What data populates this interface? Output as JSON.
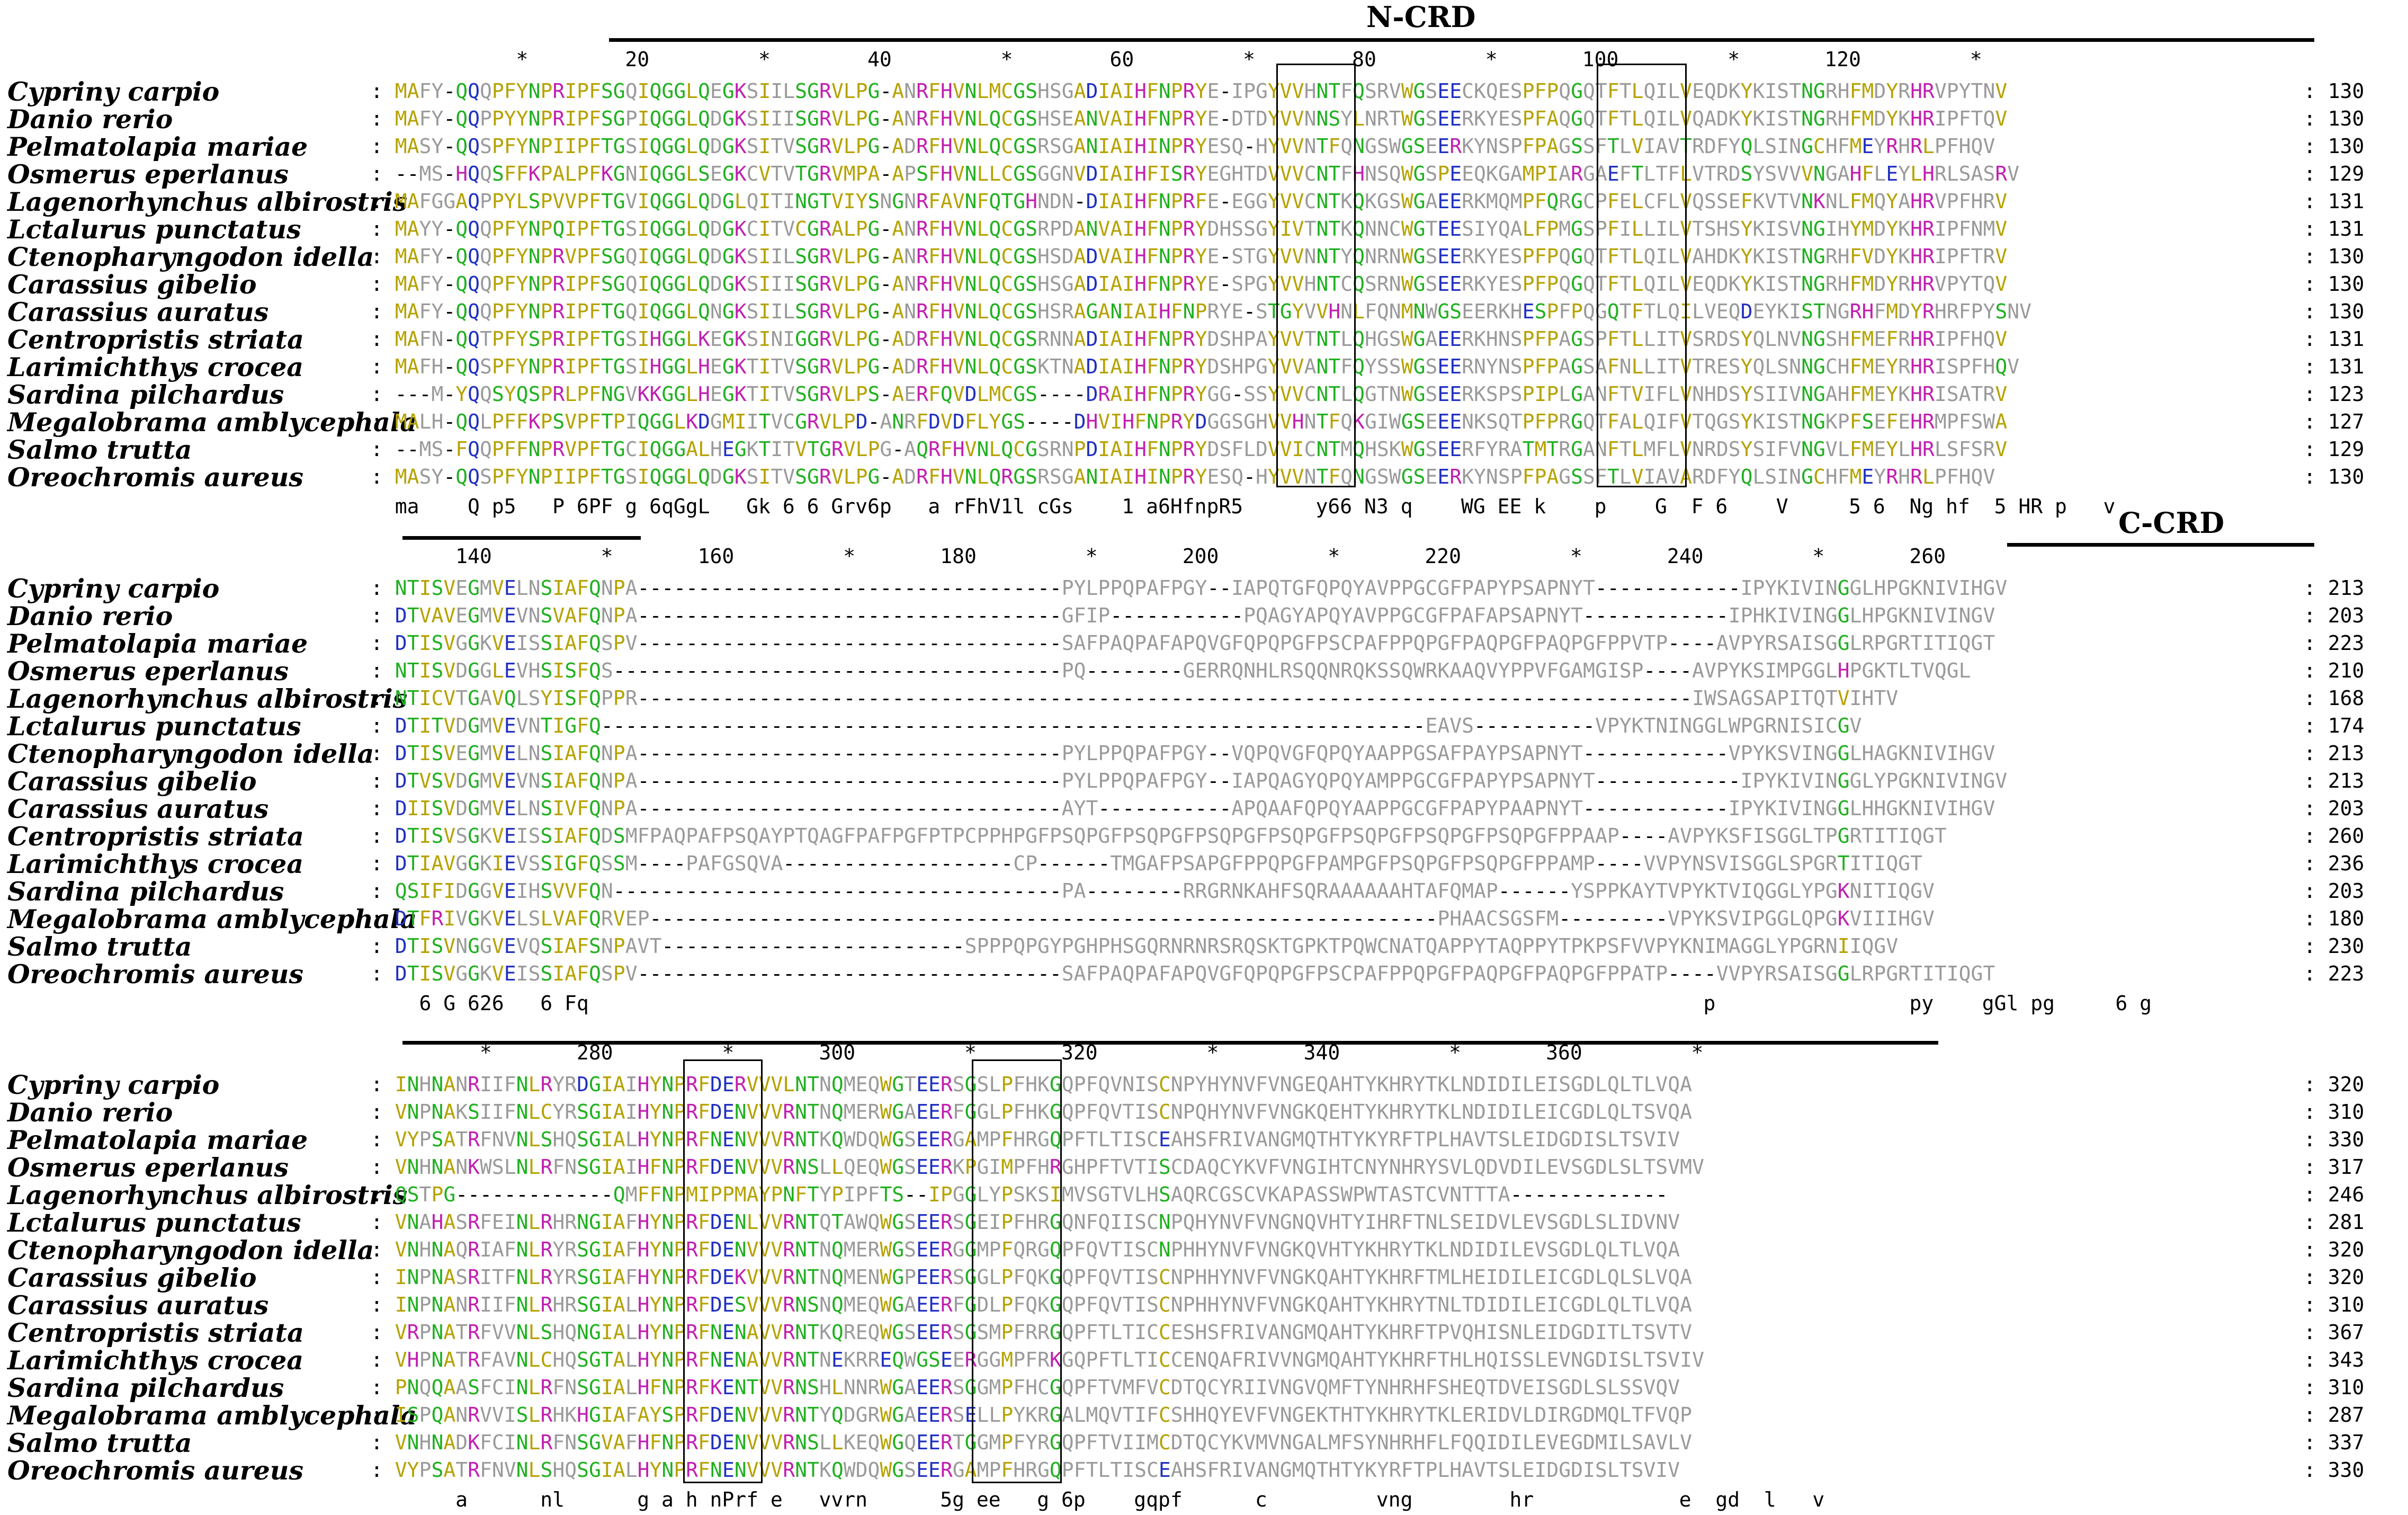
{
  "colors": {
    "yellow": "#b5a200",
    "gray": "#9a9a9a",
    "red": "#c8102e",
    "magenta": "#c020b0",
    "green": "#20b020",
    "blue": "#2030c0",
    "black": "#000000"
  },
  "regions": [
    {
      "label": "N-CRD",
      "block": 0
    },
    {
      "label": "C-CRD",
      "block": 1
    }
  ],
  "blocks": [
    {
      "ruler": "          *        20         *        40         *        60         *        80         *       100         *       120         *",
      "rows": [
        {
          "species": "Cypriny carpio",
          "seq": "MAFY-QQQPFYNPRIPFSGQIQGGLQEGKSIILSGRVLPG-ANRFHVNLMCGSHSGADIAIHFNPRYE-IPGYVVHNTFQSRVWGSEECKQESPFPQGQTFTLQILVEQDKYKISTNGRHFMDYRHRVPYTNV",
          "num": "130"
        },
        {
          "species": "Danio rerio",
          "seq": "MAFY-QQPPYYNPRIPFSGPIQGGLQDGKSIIISGRVLPG-ANRFHVNLQCGSHSEANVAIHFNPRYE-DTDYVVNNSYLNRTWGSEERKYESPFAQGQTFTLQILVQADKYKISTNGRHFMDYKHRIPFTQV",
          "num": "130"
        },
        {
          "species": "Pelmatolapia mariae",
          "seq": "MASY-QQSPFYNPIIPFTGSIQGGLQDGKSITVSGRVLPG-ADRFHVNLQCGSRSGANIAIHINPRYESQ-HYVVNTFQNGSWGSEERKYNSPFPAGSSFTLVIAVTRDFYQLSINGCHFMEYRHRLPFHQV",
          "num": "130"
        },
        {
          "species": "Osmerus eperlanus",
          "seq": "--MS-HQQSFFKPALPFKGNIQGGLSEGKCVTVTGRVMPA-APSFHVNLLCGSGGNVDIAIHFISRYEGHTDVVVCNTFHNSQWGSPEEQKGAMPIARGAEFTLTFLVTRDSYSVVVNGAHFLEYLHRLSASRV",
          "num": "129"
        },
        {
          "species": "Lagenorhynchus albirostris",
          "seq": "MAFGGAQPPYLSPVVPFTGVIQGGLQDGLQITINGTVIYSNGNRFAVNFQTGHNDN-DIAIHFNPRFE-EGGYVVCNTKQKGSWGAEERKMQMPFQRGCPFELCFLVQSSEFKVTVNKNLFMQYAHRVPFHRV",
          "num": "131"
        },
        {
          "species": "Lctalurus punctatus",
          "seq": "MAYY-QQQPFYNPQIPFTGSIQGGLQDGKCITVCGRALPG-ANRFHVNLQCGSRPDANVAIHFNPRYDHSSGYIVTNTKQNNCWGTEESIYQALFPMGSPFILLILVTSHSYKISVNGIHYMDYKHRIPFNMV",
          "num": "131"
        },
        {
          "species": "Ctenopharyngodon idella",
          "seq": "MAFY-QQQPFYNPRVPFSGQIQGGLQDGKSIILSGRVLPG-ANRFHVNLQCGSHSDADVAIHFNPRYE-STGYVVNNTYQNRNWGSEERKYESPFPQGQTFTLQILVAHDKYKISTNGRHFVDYKHRIPFTRV",
          "num": "130"
        },
        {
          "species": "Carassius gibelio",
          "seq": "MAFY-QQQPFYNPRIPFSGQIQGGLQDGKSIIISGRVLPG-ANRFHVNLQCGSHSGADIAIHFNPRYE-SPGYVVHNTCQSRNWGSEERKYESPFPQGQTFTLQILVEQDKYKISTNGRHFMDYRHRVPYTQV",
          "num": "130"
        },
        {
          "species": "Carassius auratus",
          "seq": "MAFY-QQQPFYNPRIPFTGQIQGGLQNGKSIILSGRVLPG-ANRFHVNLQCGSHSRAGANIAIHFNPRYE-STGYVVHNLFQNMNWGSEERKHESPFPQGQTFTLQILVEQDEYKISTNGRHFMDYRHRFPYSNV",
          "num": "130"
        },
        {
          "species": "Centropristis striata",
          "seq": "MAFN-QQTPFYSPRIPFTGSIHGGLKEGKSINIGGRVLPG-ADRFHVNLQCGSRNNADIAIHFNPRYDSHPAYVVTNTLQHGSWGAEERKHNSPFPAGSPFTLLITVSRDSYQLNVNGSHFMEFRHRIPFHQV",
          "num": "131"
        },
        {
          "species": "Larimichthys crocea",
          "seq": "MAFH-QQSPFYNPRIPFTGSIHGGLHEGKTITVSGRVLPG-ADRFHVNLQCGSKTNADIAIHFNPRYDSHPGYVVANTFQYSSWGSEERNYNSPFPAGSAFNLLITVTRESYQLSNNGCHFMEYRHRISPFHQV",
          "num": "131"
        },
        {
          "species": "Sardina pilchardus",
          "seq": "---M-YQQSYQSPRLPFNGVKKGGLHEGKTITVSGRVLPS-AERFQVDLMCGS----DRAIHFNPRYGG-SSYVVCNTLQGTNWGSEERKSPSPIPLGANFTVIFLVNHDSYSIIVNGAHFMEYKHRISATRV",
          "num": "123"
        },
        {
          "species": "Megalobrama amblycephala",
          "seq": "MALH-QQLPFFKPSVPFTPIQGGLKDGMIITVCGRVLPD-ANRFDVDFLYGS----DHVIHFNPRYDGGSGHVVHNTFQKGIWGSEEENKSQTPFPRGQTFALQIFVTQGSYKISTNGKPFSEFEHRMPFSWA",
          "num": "127"
        },
        {
          "species": "Salmo trutta",
          "seq": "--MS-FQQPFFNPRVPFTGCIQGGALHEGKTITVTGRVLPG-AQRFHVNLQCGSRNPDIAIHFNPRYDSFLDVVICNTMQHSKWGSEERFYRATMTRGANFTLMFLVNRDSYSIFVNGVLFMEYLHRLSFSRV",
          "num": "129"
        },
        {
          "species": "Oreochromis aureus",
          "seq": "MASY-QQSPFYNPIIPFTGSIQGGLQDGKSITVSGRVLPG-ADRFHVNLQRGSRSGANIAIHINPRYESQ-HYVVNTFQNGSWGSEERKYNSPFPAGSSFTLVIAVARDFYQLSINGCHFMEYRHRLPFHQV",
          "num": "130"
        }
      ],
      "consensus": "ma    Q p5   P 6PF g 6qGgL   Gk 6 6 Grv6p   a rFhV1l cGs    1 a6HfnpR5      y66 N3 q    WG EE k    p    G  F 6    V     5 6  Ng hf  5 HR p   v"
    },
    {
      "ruler": "     140         *       160         *       180         *       200         *       220         *       240         *       260",
      "rows": [
        {
          "species": "Cypriny carpio",
          "seq": "NTISVEGMVELNSIAFQNPA-----------------------------------PYLPPQPAFPGY--IAPQTGFQPQYAVPPGCGFPAPYPSAPNYT------------IPYKIVINGGLHPGKNIVIHGV",
          "num": "213"
        },
        {
          "species": "Danio rerio",
          "seq": "DTVAVEGMVEVNSVAFQNPA-----------------------------------GFIP-----------PQAGYAPQYAVPPGCGFPAFAPSAPNYT------------IPHKIVINGGLHPGKNIVINGV",
          "num": "203"
        },
        {
          "species": "Pelmatolapia mariae",
          "seq": "DTISVGGKVEISSIAFQSPV-----------------------------------SAFPAQPAFAPQVGFQPQPGFPSCPAFPPQPGFPAQPGFPAQPGFPPVTP----AVPYRSAISGGLRPGRTITIQGT",
          "num": "223"
        },
        {
          "species": "Osmerus eperlanus",
          "seq": "NTISVDGGLEVHSISFQS-------------------------------------PQ--------GERRQNHLRSQQNRQKSSQWRKAAQVYPPVFGAMGISP----AVPYKSIMPGGLHPGKTLTVQGL",
          "num": "210"
        },
        {
          "species": "Lagenorhynchus albirostris",
          "seq": "NTICVTGAVQLSYISFQPPR---------------------------------------------------------------------------------------IWSAGSAPITQTVIHTV",
          "num": "168"
        },
        {
          "species": "Lctalurus punctatus",
          "seq": "DTITVDGMVEVNTIGFQ--------------------------------------------------------------------EAVS----------VPYKTNINGGLWPGRNISICGV",
          "num": "174"
        },
        {
          "species": "Ctenopharyngodon idella",
          "seq": "DTISVEGMVELNSIAFQNPA-----------------------------------PYLPPQPAFPGY--VQPQVGFQPQYAAPPGSAFPAYPSAPNYT------------VPYKSVINGGLHAGKNIVIHGV",
          "num": "213"
        },
        {
          "species": "Carassius gibelio",
          "seq": "DTVSVDGMVEVNSIAFQNPA-----------------------------------PYLPPQPAFPGY--IAPQAGYQPQYAMPPGCGFPAPYPSAPNYT------------IPYKIVINGGLYPGKNIVINGV",
          "num": "213"
        },
        {
          "species": "Carassius auratus",
          "seq": "DIISVDGMVELNSIVFQNPA-----------------------------------AYT-----------APQAAFQPQYAAPPGCGFPAPYPAAPNYT------------IPYKIVINGGLHHGKNIVIHGV",
          "num": "203"
        },
        {
          "species": "Centropristis striata",
          "seq": "DTISVSGKVEISSIAFQDSMFPAQPAFPSQAYPTQAGFPAFPGFPTPCPPHPGFPSQPGFPSQPGFPSQPGFPSQPGFPSQPGFPSQPGFPSQPGFPPAAP----AVPYKSFISGGLTPGRTITIQGT",
          "num": "260"
        },
        {
          "species": "Larimichthys crocea",
          "seq": "DTIAVGGKIEVSSIGFQSSM----PAFGSQVA-------------------CP------TMGAFPSAPGFPPQPGFPAMPGFPSQPGFPSQPGFPPAMP----VVPYNSVISGGLSPGRTITIQGT",
          "num": "236"
        },
        {
          "species": "Sardina pilchardus",
          "seq": "QSIFIDGGVEIHSVVFQN-------------------------------------PA--------RRGRNKAHFSQRAAAAAAHTAFQMAP------YSPPKAYTVPYKTVIQGGLYPGKNITIQGV",
          "num": "203"
        },
        {
          "species": "Megalobrama amblycephala",
          "seq": "DTFRIVGKVELSLVAFQRVEP-----------------------------------------------------------------PHAACSGSFM---------VPYKSVIPGGLQPGKVIIIHGV",
          "num": "180"
        },
        {
          "species": "Salmo trutta",
          "seq": "DTISVNGGVEVQSIAFSNPAVT-------------------------SPPPQPGYPGHPHSGQRNRNRSRQSKTGPKTPQWCNATQAPPYTAQPPYTPKPSFVVPYKNIMAGGLYPGRNIIQGV",
          "num": "230"
        },
        {
          "species": "Oreochromis aureus",
          "seq": "DTISVGGKVEISSIAFQSPV-----------------------------------SAFPAQPAFAPQVGFQPQPGFPSCPAFPPQPGFPAQPGFPAQPGFPPATP----VVPYRSAISGGLRPGRTITIQGT",
          "num": "223"
        }
      ],
      "consensus": "  6 G 626   6 Fq                                                                                            p                py    gGl pg     6 g"
    },
    {
      "ruler": "       *       280         *       300         *       320         *       340         *       360         *",
      "rows": [
        {
          "species": "Cypriny carpio",
          "seq": "INHNANRIIFNLRYRDGIAIHYNPRFDERVVVLNTNQMEQWGTEERSGSLPFHKGQPFQVNISCNPYHYNVFVNGEQAHTYKHRYTKLNDIDILEISGDLQLTLVQA",
          "num": "320"
        },
        {
          "species": "Danio rerio",
          "seq": "VNPNAKSIIFNLCYRSGIAIHYNPRFDENVVVRNTNQMERWGAEERFGGLPFHKGQPFQVTISCNPQHYNVFVNGKQEHTYKHRYTKLNDIDILEICGDLQLTSVQA",
          "num": "310"
        },
        {
          "species": "Pelmatolapia mariae",
          "seq": "VYPSATRFNVNLSHQSGIALHYNPRFNENVVVRNTKQWDQWGSEERGAMPFHRGQPFTLTISCEAHSFRIVANGMQTHTYKYRFTPLHAVTSLEIDGDISLTSVIV",
          "num": "330"
        },
        {
          "species": "Osmerus eperlanus",
          "seq": "VNHNANKWSLNLRFNSGIAIHFNPRFDENVVVRNSLLQEQWGSEERKPGIMPFHRGHPFTVTISCDAQCYKVFVNGIHTCNYNHRYSVLQDVDILEVSGDLSLTSVMV",
          "num": "317"
        },
        {
          "species": "Lagenorhynchus albirostris",
          "seq": "QSTPG-------------QMFFNPMIPPMAYPNFTYPIPFTS--IPGGLYPSKSIMVSGTVLHSAQRCGSCVKAPASSWPWTASTCVNTTTA-------------",
          "num": "246"
        },
        {
          "species": "Lctalurus punctatus",
          "seq": "VNAHASRFEINLRHRNGIAFHYNPRFDENLVVRNTQTAWQWGSEERSGEIPFHRGQNFQIISCNPQHYNVFVNGNQVHTYIHRFTNLSEIDVLEVSGDLSLIDVNV",
          "num": "281"
        },
        {
          "species": "Ctenopharyngodon idella",
          "seq": "VNHNAQRIAFNLRYRSGIAFHYNPRFDENVVVRNTNQMERWGSEERGGMPFQRGQPFQVTISCNPHHYNVFVNGKQVHTYKHRYTKLNDIDILEVSGDLQLTLVQA",
          "num": "320"
        },
        {
          "species": "Carassius gibelio",
          "seq": "INPNASRITFNLRYRSGIAFHYNPRFDEKVVVRNTNQMENWGPEERSGGLPFQKGQPFQVTISCNPHHYNVFVNGKQAHTYKHRFTMLHEIDILEICGDLQLSLVQA",
          "num": "320"
        },
        {
          "species": "Carassius auratus",
          "seq": "INPNANRIIFNLRHRSGIALHYNPRFDESVVVRNSNQMEQWGAEERFGDLPFQKGQPFQVTISCNPHHYNVFVNGKQAHTYKHRYTNLTDIDILEICGDLQLTLVQA",
          "num": "310"
        },
        {
          "species": "Centropristis striata",
          "seq": "VRPNATRFVVNLSHQNGIALHYNPRFNENAVVRNTKQREQWGSEERSGSMPFRRGQPFTLTICCESHSFRIVANGMQAHTYKHRFTPVQHISNLEIDGDITLTSVTV",
          "num": "367"
        },
        {
          "species": "Larimichthys crocea",
          "seq": "VHPNATRFAVNLCHQSGTALHYNPRFNENAVVRNTNEKRREQWGSEERGGMPFRKGQPFTLTICCENQAFRIVVNGMQAHTYKHRFTHLHQISSLEVNGDISLTSVIV",
          "num": "343"
        },
        {
          "species": "Sardina pilchardus",
          "seq": "PNQQAASFCINLRFNSGIALHFNPRFKENTVVRNSHLNNRWGAEERSGGMPFHCGQPFTVMFVCDTQCYRIIVNGVQMFTYNHRHFSHEQTDVEISGDLSLSSVQV",
          "num": "310"
        },
        {
          "species": "Megalobrama amblycephala",
          "seq": "ISPQANRVVISLRHKHGIAFAYSPRFDENVVVRNTYQDGRWGAEERSELLPYKRGALMQVTIFCSHHQYEVFVNGEKTHTYKHRYTKLERIDVLDIRGDMQLTFVQP",
          "num": "287"
        },
        {
          "species": "Salmo trutta",
          "seq": "VNHNADKFCINLRFNSGVAFHFNPRFDENVVVRNSLLKEQWGQEERTGGMPFYRGQPFTVIIMCDTQCYKVMVNGALMFSYNHRHFLFQQIDILEVEGDMILSAVLV",
          "num": "337"
        },
        {
          "species": "Oreochromis aureus",
          "seq": "VYPSATRFNVNLSHQSGIALHYNPRFNENVVVRNTKQWDQWGSEERGAMPFHRGQPFTLTISCEAHSFRIVANGMQTHTYKYRFTPLHAVTSLEIDGDISLTSVIV",
          "num": "330"
        }
      ],
      "consensus": "     a      nl      g a h nPrf e   vvrn      5g ee   g 6p    gqpf      c         vng        hr            e  gd  l   v"
    }
  ]
}
